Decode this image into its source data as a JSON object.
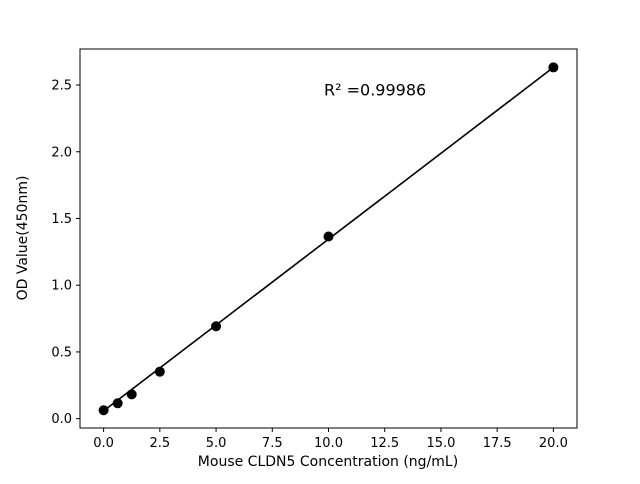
{
  "chart_data": {
    "type": "scatter",
    "title": "",
    "xlabel": "Mouse CLDN5 Concentration (ng/mL)",
    "ylabel": "OD Value(450nm)",
    "annotation": "R² =0.99986",
    "annotation_pos": [
      9.8,
      2.42
    ],
    "x": [
      0,
      0.625,
      1.25,
      2.5,
      5,
      10,
      20
    ],
    "y": [
      0.063,
      0.115,
      0.182,
      0.352,
      0.692,
      1.365,
      2.632
    ],
    "fit_line": {
      "x": [
        0,
        20
      ],
      "y": [
        0.058,
        2.632
      ]
    },
    "xticks": [
      0.0,
      2.5,
      5.0,
      7.5,
      10.0,
      12.5,
      15.0,
      17.5,
      20.0
    ],
    "yticks": [
      0.0,
      0.5,
      1.0,
      1.5,
      2.0,
      2.5
    ],
    "xlim": [
      -1.05,
      21.05
    ],
    "ylim": [
      -0.07,
      2.77
    ],
    "grid": false,
    "legend": null,
    "marker_color": "#000000",
    "line_color": "#000000",
    "background_color": "#ffffff",
    "spine_color": "#000000"
  }
}
